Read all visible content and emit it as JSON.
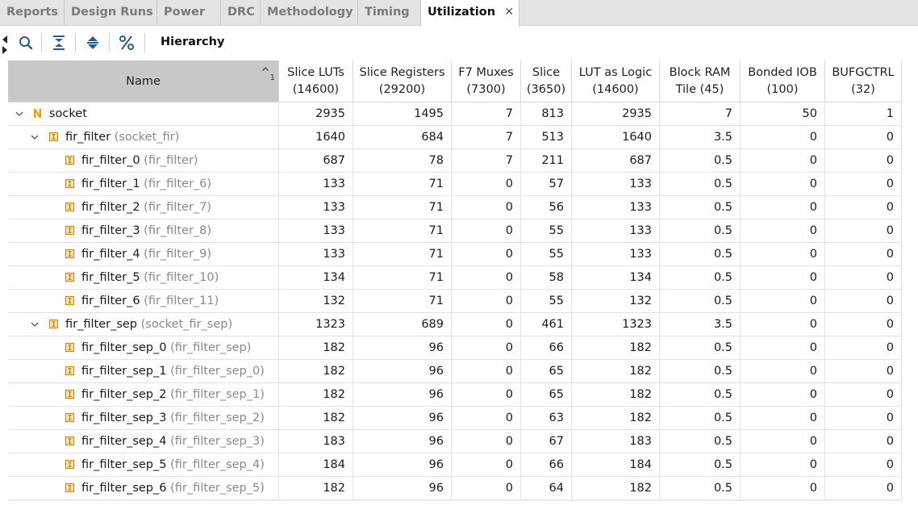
{
  "tabs": [
    {
      "label": "Reports",
      "active": false
    },
    {
      "label": "Design Runs",
      "active": false
    },
    {
      "label": "Power",
      "active": false
    },
    {
      "label": "DRC",
      "active": false
    },
    {
      "label": "Methodology",
      "active": false
    },
    {
      "label": "Timing",
      "active": false
    },
    {
      "label": "Utilization",
      "active": true
    }
  ],
  "tab_close_glyph": "✕",
  "toolbar": {
    "label": "Hierarchy",
    "buttons": [
      "search-icon",
      "collapse-all-icon",
      "expand-all-icon",
      "percent-icon"
    ]
  },
  "table": {
    "sort_indicator": "1",
    "columns": [
      {
        "line1": "Name",
        "line2": ""
      },
      {
        "line1": "Slice LUTs",
        "line2": "(14600)"
      },
      {
        "line1": "Slice Registers",
        "line2": "(29200)"
      },
      {
        "line1": "F7 Muxes",
        "line2": "(7300)"
      },
      {
        "line1": "Slice",
        "line2": "(3650)"
      },
      {
        "line1": "LUT as Logic",
        "line2": "(14600)"
      },
      {
        "line1": "Block RAM",
        "line2": "Tile (45)"
      },
      {
        "line1": "Bonded IOB",
        "line2": "(100)"
      },
      {
        "line1": "BUFGCTRL",
        "line2": "(32)"
      }
    ],
    "rows": [
      {
        "level": 0,
        "expanded": true,
        "icon": "top-module-icon",
        "name": "socket",
        "type": "",
        "values": [
          "2935",
          "1495",
          "7",
          "813",
          "2935",
          "7",
          "50",
          "1"
        ]
      },
      {
        "level": 1,
        "expanded": true,
        "icon": "module-icon",
        "name": "fir_filter",
        "type": "(socket_fir)",
        "values": [
          "1640",
          "684",
          "7",
          "513",
          "1640",
          "3.5",
          "0",
          "0"
        ]
      },
      {
        "level": 2,
        "icon": "module-icon",
        "name": "fir_filter_0",
        "type": "(fir_filter)",
        "values": [
          "687",
          "78",
          "7",
          "211",
          "687",
          "0.5",
          "0",
          "0"
        ]
      },
      {
        "level": 2,
        "icon": "module-icon",
        "name": "fir_filter_1",
        "type": "(fir_filter_6)",
        "values": [
          "133",
          "71",
          "0",
          "57",
          "133",
          "0.5",
          "0",
          "0"
        ]
      },
      {
        "level": 2,
        "icon": "module-icon",
        "name": "fir_filter_2",
        "type": "(fir_filter_7)",
        "values": [
          "133",
          "71",
          "0",
          "56",
          "133",
          "0.5",
          "0",
          "0"
        ]
      },
      {
        "level": 2,
        "icon": "module-icon",
        "name": "fir_filter_3",
        "type": "(fir_filter_8)",
        "values": [
          "133",
          "71",
          "0",
          "55",
          "133",
          "0.5",
          "0",
          "0"
        ]
      },
      {
        "level": 2,
        "icon": "module-icon",
        "name": "fir_filter_4",
        "type": "(fir_filter_9)",
        "values": [
          "133",
          "71",
          "0",
          "55",
          "133",
          "0.5",
          "0",
          "0"
        ]
      },
      {
        "level": 2,
        "icon": "module-icon",
        "name": "fir_filter_5",
        "type": "(fir_filter_10)",
        "values": [
          "134",
          "71",
          "0",
          "58",
          "134",
          "0.5",
          "0",
          "0"
        ]
      },
      {
        "level": 2,
        "icon": "module-icon",
        "name": "fir_filter_6",
        "type": "(fir_filter_11)",
        "values": [
          "132",
          "71",
          "0",
          "55",
          "132",
          "0.5",
          "0",
          "0"
        ]
      },
      {
        "level": 1,
        "expanded": true,
        "icon": "module-icon",
        "name": "fir_filter_sep",
        "type": "(socket_fir_sep)",
        "values": [
          "1323",
          "689",
          "0",
          "461",
          "1323",
          "3.5",
          "0",
          "0"
        ]
      },
      {
        "level": 2,
        "icon": "module-icon",
        "name": "fir_filter_sep_0",
        "type": "(fir_filter_sep)",
        "values": [
          "182",
          "96",
          "0",
          "66",
          "182",
          "0.5",
          "0",
          "0"
        ]
      },
      {
        "level": 2,
        "icon": "module-icon",
        "name": "fir_filter_sep_1",
        "type": "(fir_filter_sep_0)",
        "values": [
          "182",
          "96",
          "0",
          "65",
          "182",
          "0.5",
          "0",
          "0"
        ]
      },
      {
        "level": 2,
        "icon": "module-icon",
        "name": "fir_filter_sep_2",
        "type": "(fir_filter_sep_1)",
        "values": [
          "182",
          "96",
          "0",
          "65",
          "182",
          "0.5",
          "0",
          "0"
        ]
      },
      {
        "level": 2,
        "icon": "module-icon",
        "name": "fir_filter_sep_3",
        "type": "(fir_filter_sep_2)",
        "values": [
          "182",
          "96",
          "0",
          "63",
          "182",
          "0.5",
          "0",
          "0"
        ]
      },
      {
        "level": 2,
        "icon": "module-icon",
        "name": "fir_filter_sep_4",
        "type": "(fir_filter_sep_3)",
        "values": [
          "183",
          "96",
          "0",
          "67",
          "183",
          "0.5",
          "0",
          "0"
        ]
      },
      {
        "level": 2,
        "icon": "module-icon",
        "name": "fir_filter_sep_5",
        "type": "(fir_filter_sep_4)",
        "values": [
          "184",
          "96",
          "0",
          "66",
          "184",
          "0.5",
          "0",
          "0"
        ]
      },
      {
        "level": 2,
        "icon": "module-icon",
        "name": "fir_filter_sep_6",
        "type": "(fir_filter_sep_5)",
        "values": [
          "182",
          "96",
          "0",
          "64",
          "182",
          "0.5",
          "0",
          "0"
        ]
      }
    ]
  },
  "colors": {
    "top_icon": "#e8a21a",
    "module_icon_border": "#c98a12",
    "module_icon_fill": "#fbe6b0"
  }
}
